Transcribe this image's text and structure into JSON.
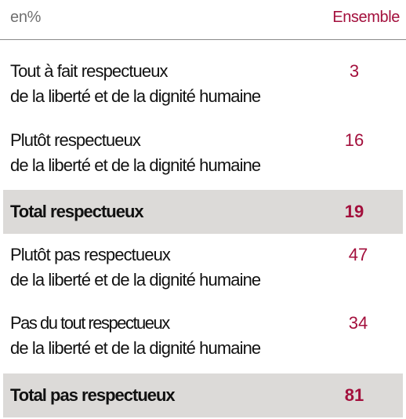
{
  "header": {
    "unit": "en%",
    "column": "Ensemble"
  },
  "rows": [
    {
      "line1": "Tout à fait respectueux",
      "line2": "de la liberté et de la dignité humaine",
      "value": "3"
    },
    {
      "line1": "Plutôt respectueux",
      "line2": "de la liberté et de la dignité humaine",
      "value": "16"
    },
    {
      "line1": "Total respectueux",
      "value": "19"
    },
    {
      "line1": "Plutôt pas respectueux",
      "line2": "de la liberté et de la dignité humaine",
      "value": "47"
    },
    {
      "line1": "Pas du tout respectueux",
      "line2": "de la liberté et de la dignité humaine",
      "value": "34"
    },
    {
      "line1": "Total pas respectueux",
      "value": "81"
    }
  ],
  "colors": {
    "accent": "#a30f3c",
    "total_background": "#dcdad8"
  }
}
